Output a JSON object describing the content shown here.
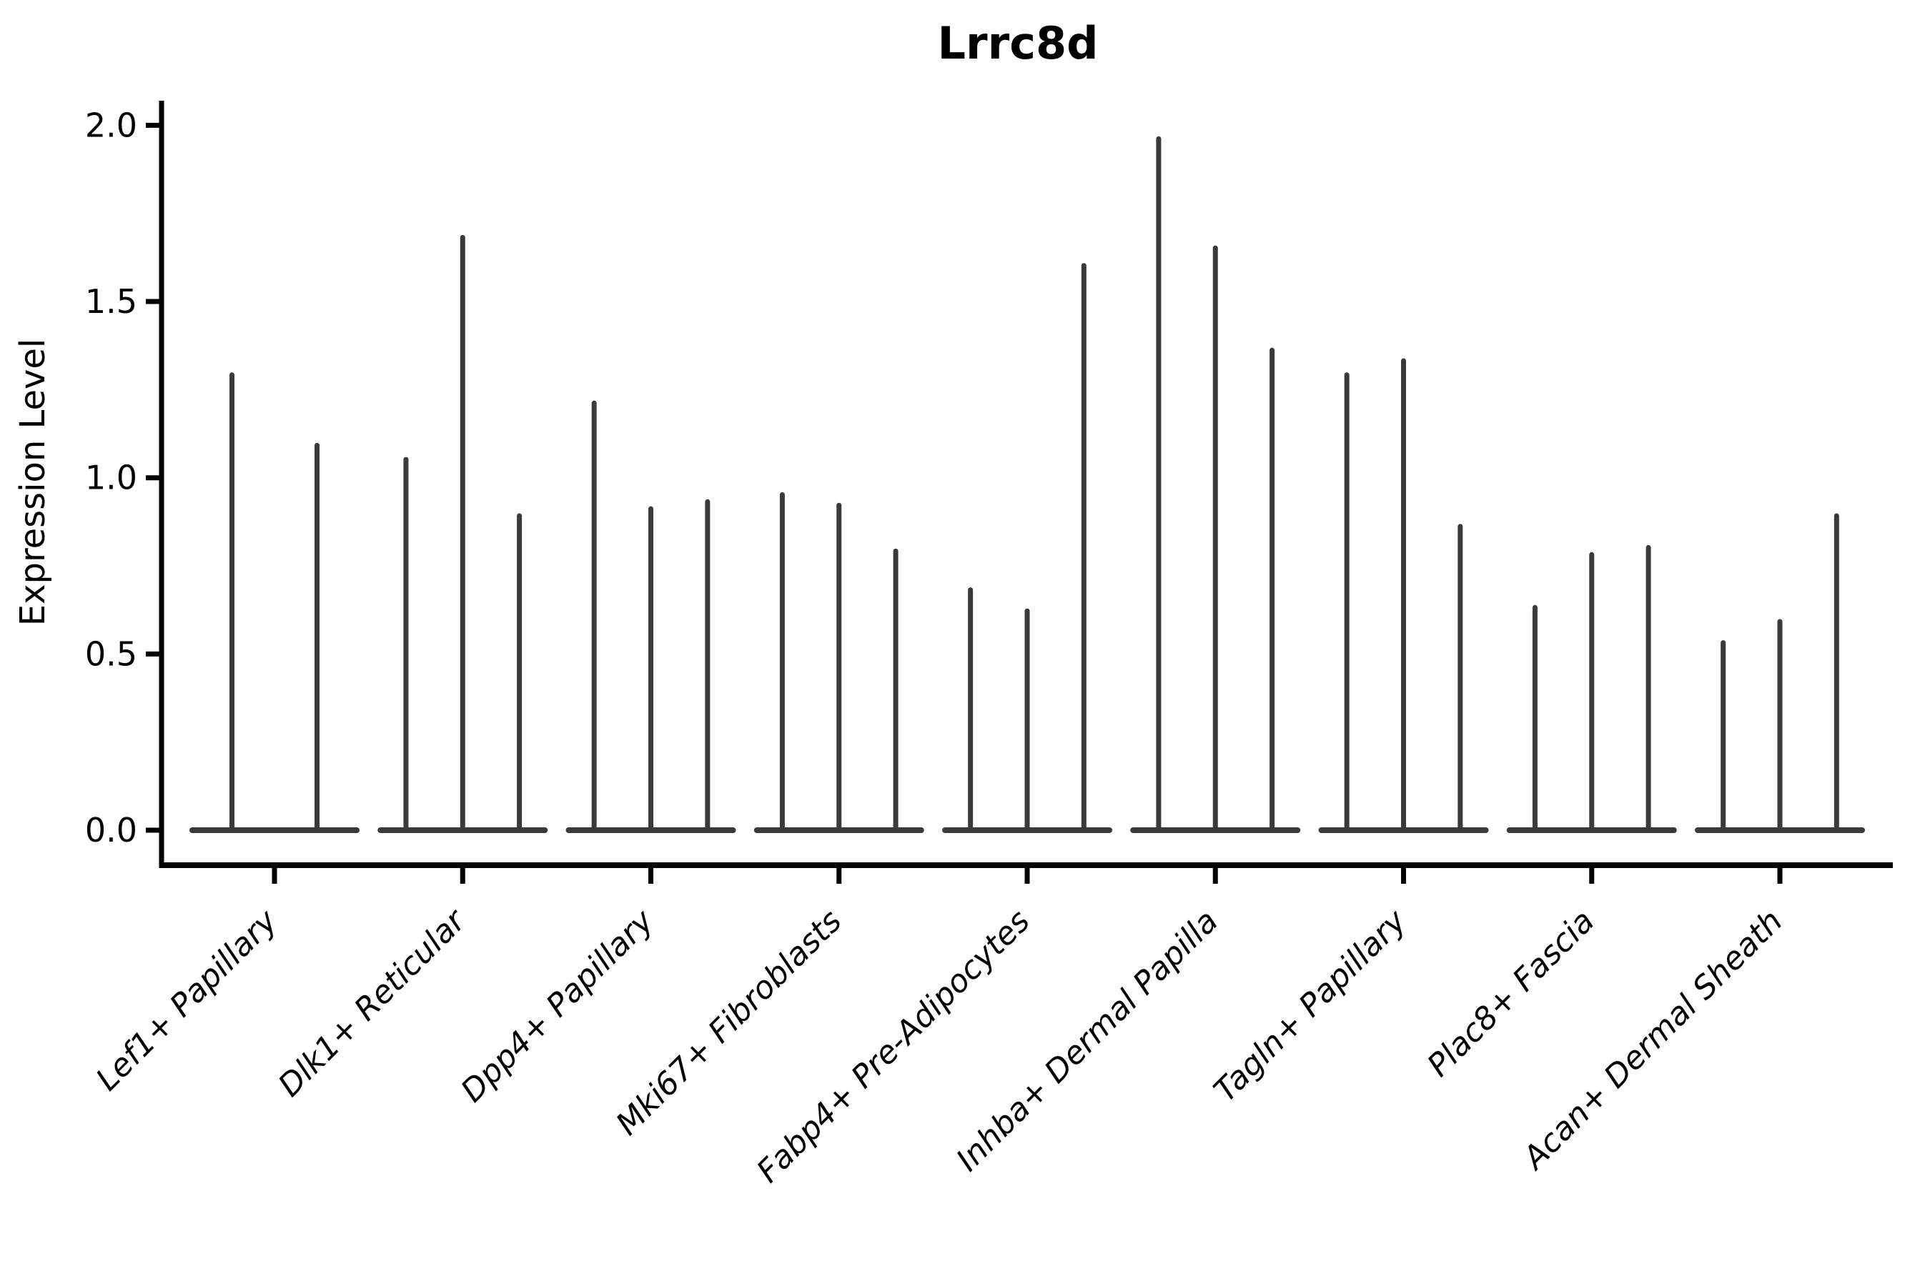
{
  "title": "Lrrc8d",
  "chart_data": {
    "type": "violin",
    "title": "Lrrc8d",
    "ylabel": "Expression Level",
    "xlabel": "",
    "ylim": [
      0,
      2.05
    ],
    "yticks": [
      0.0,
      0.5,
      1.0,
      1.5,
      2.0
    ],
    "ytick_labels": [
      "0.0",
      "0.5",
      "1.0",
      "1.5",
      "2.0"
    ],
    "grid": false,
    "legend": "none",
    "style_note": "needle-thin violins with flat base at 0; groups of 2-3 violins per category",
    "categories": [
      "Lef1+ Papillary",
      "Dlk1+ Reticular",
      "Dpp4+ Papillary",
      "Mki67+ Fibroblasts",
      "Fabp4+ Pre-Adipocytes",
      "Inhba+ Dermal Papilla",
      "Tagln+ Papillary",
      "Plac8+ Fascia",
      "Acan+ Dermal Sheath"
    ],
    "groups": [
      {
        "category": "Lef1+ Papillary",
        "peaks": [
          1.3,
          1.1
        ]
      },
      {
        "category": "Dlk1+ Reticular",
        "peaks": [
          1.06,
          1.69,
          0.9
        ]
      },
      {
        "category": "Dpp4+ Papillary",
        "peaks": [
          1.22,
          0.92,
          0.94
        ]
      },
      {
        "category": "Mki67+ Fibroblasts",
        "peaks": [
          0.96,
          0.93,
          0.8
        ]
      },
      {
        "category": "Fabp4+ Pre-Adipocytes",
        "peaks": [
          0.69,
          0.63,
          1.61
        ]
      },
      {
        "category": "Inhba+ Dermal Papilla",
        "peaks": [
          1.97,
          1.66,
          1.37
        ]
      },
      {
        "category": "Tagln+ Papillary",
        "peaks": [
          1.3,
          1.34,
          0.87
        ]
      },
      {
        "category": "Plac8+ Fascia",
        "peaks": [
          0.64,
          0.79,
          0.81
        ]
      },
      {
        "category": "Acan+ Dermal Sheath",
        "peaks": [
          0.54,
          0.6,
          0.9
        ]
      }
    ],
    "colors": {
      "violin": "#3a3a3a",
      "axis": "#000000",
      "text": "#000000",
      "background": "#ffffff"
    }
  }
}
